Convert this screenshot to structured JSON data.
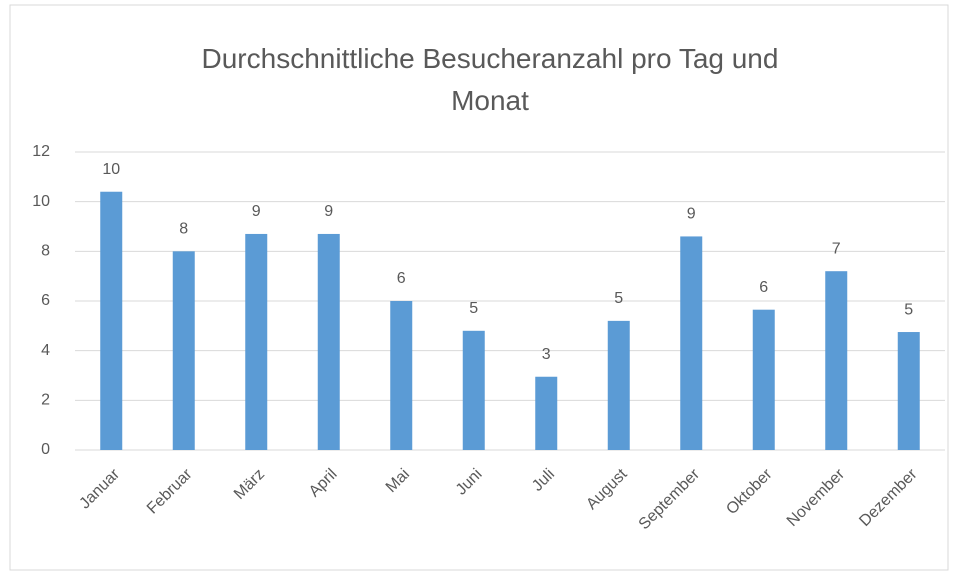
{
  "chart_data": {
    "type": "bar",
    "title": "Durchschnittliche Besucheranzahl pro Tag und Monat",
    "categories": [
      "Januar",
      "Februar",
      "März",
      "April",
      "Mai",
      "Juni",
      "Juli",
      "August",
      "September",
      "Oktober",
      "November",
      "Dezember"
    ],
    "values": [
      10.4,
      8.0,
      8.7,
      8.7,
      6.0,
      4.8,
      2.95,
      5.2,
      8.6,
      5.65,
      7.2,
      4.75
    ],
    "value_labels": [
      "10",
      "8",
      "9",
      "9",
      "6",
      "5",
      "3",
      "5",
      "9",
      "6",
      "7",
      "5"
    ],
    "color": "#5b9bd5",
    "ylim": [
      0,
      12
    ],
    "yticks": [
      0,
      2,
      4,
      6,
      8,
      10,
      12
    ],
    "grid": true
  }
}
